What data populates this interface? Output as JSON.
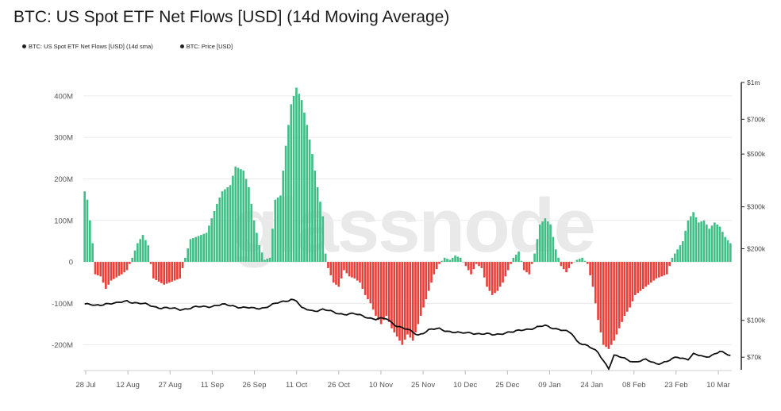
{
  "title": "BTC: US Spot ETF Net Flows [USD] (14d Moving Average)",
  "watermark": "glassnode",
  "legend": [
    {
      "label": "BTC: US Spot ETF Net Flows [USD] (14d sma)",
      "color": "#222222"
    },
    {
      "label": "BTC: Price [USD]",
      "color": "#111111"
    }
  ],
  "colors": {
    "positive": "#3fbf86",
    "negative": "#e8403a",
    "price_line": "#111111",
    "grid": "#ececec"
  },
  "chart_data": {
    "type": "bar",
    "x_tick_labels": [
      "28 Jul",
      "12 Aug",
      "27 Aug",
      "11 Sep",
      "26 Sep",
      "11 Oct",
      "26 Oct",
      "10 Nov",
      "25 Nov",
      "10 Dec",
      "25 Dec",
      "09 Jan",
      "24 Jan",
      "08 Feb",
      "23 Feb",
      "10 Mar"
    ],
    "y_left_ticks": [
      {
        "value": 400,
        "label": "400M"
      },
      {
        "value": 300,
        "label": "300M"
      },
      {
        "value": 200,
        "label": "200M"
      },
      {
        "value": 100,
        "label": "100M"
      },
      {
        "value": 0,
        "label": "0"
      },
      {
        "value": -100,
        "label": "-100M"
      },
      {
        "value": -200,
        "label": "-200M"
      }
    ],
    "y_left_range": [
      -260,
      440
    ],
    "y_right_scale": "log",
    "y_right_ticks": [
      {
        "value": 1000000,
        "label": "$1m"
      },
      {
        "value": 700000,
        "label": "$700k"
      },
      {
        "value": 500000,
        "label": "$500k"
      },
      {
        "value": 300000,
        "label": "$300k"
      },
      {
        "value": 200000,
        "label": "$200k"
      },
      {
        "value": 100000,
        "label": "$100k"
      },
      {
        "value": 70000,
        "label": "$70k"
      }
    ],
    "y_right_range": [
      62000,
      1030000
    ],
    "series": [
      {
        "name": "BTC: US Spot ETF Net Flows [USD] (14d sma)",
        "unit": "M USD",
        "anchors": [
          [
            0,
            170
          ],
          [
            1,
            150
          ],
          [
            2,
            100
          ],
          [
            3,
            45
          ],
          [
            4,
            -30
          ],
          [
            6,
            -35
          ],
          [
            8,
            -65
          ],
          [
            10,
            -45
          ],
          [
            14,
            -30
          ],
          [
            16,
            -20
          ],
          [
            18,
            10
          ],
          [
            20,
            45
          ],
          [
            22,
            65
          ],
          [
            24,
            40
          ],
          [
            25,
            -5
          ],
          [
            26,
            -40
          ],
          [
            30,
            -55
          ],
          [
            34,
            -45
          ],
          [
            36,
            -40
          ],
          [
            38,
            10
          ],
          [
            40,
            55
          ],
          [
            46,
            70
          ],
          [
            50,
            140
          ],
          [
            52,
            170
          ],
          [
            55,
            185
          ],
          [
            57,
            230
          ],
          [
            60,
            220
          ],
          [
            62,
            180
          ],
          [
            64,
            100
          ],
          [
            66,
            40
          ],
          [
            68,
            5
          ],
          [
            70,
            10
          ],
          [
            72,
            150
          ],
          [
            74,
            160
          ],
          [
            76,
            280
          ],
          [
            78,
            380
          ],
          [
            80,
            420
          ],
          [
            82,
            390
          ],
          [
            84,
            330
          ],
          [
            86,
            260
          ],
          [
            88,
            180
          ],
          [
            90,
            110
          ],
          [
            91,
            20
          ],
          [
            92,
            -15
          ],
          [
            94,
            -50
          ],
          [
            96,
            -60
          ],
          [
            98,
            -20
          ],
          [
            100,
            -35
          ],
          [
            102,
            -40
          ],
          [
            104,
            -50
          ],
          [
            106,
            -80
          ],
          [
            108,
            -100
          ],
          [
            110,
            -130
          ],
          [
            112,
            -150
          ],
          [
            114,
            -130
          ],
          [
            116,
            -160
          ],
          [
            118,
            -180
          ],
          [
            120,
            -200
          ],
          [
            122,
            -175
          ],
          [
            124,
            -190
          ],
          [
            126,
            -150
          ],
          [
            128,
            -110
          ],
          [
            130,
            -70
          ],
          [
            132,
            -30
          ],
          [
            134,
            -5
          ],
          [
            136,
            10
          ],
          [
            138,
            5
          ],
          [
            140,
            15
          ],
          [
            142,
            10
          ],
          [
            144,
            -10
          ],
          [
            146,
            -30
          ],
          [
            148,
            -5
          ],
          [
            150,
            -15
          ],
          [
            152,
            -60
          ],
          [
            154,
            -80
          ],
          [
            156,
            -70
          ],
          [
            158,
            -50
          ],
          [
            160,
            -20
          ],
          [
            162,
            10
          ],
          [
            164,
            25
          ],
          [
            166,
            -20
          ],
          [
            168,
            -30
          ],
          [
            170,
            20
          ],
          [
            172,
            90
          ],
          [
            174,
            105
          ],
          [
            176,
            90
          ],
          [
            178,
            30
          ],
          [
            180,
            -10
          ],
          [
            182,
            -25
          ],
          [
            184,
            -5
          ],
          [
            186,
            5
          ],
          [
            188,
            10
          ],
          [
            190,
            -5
          ],
          [
            192,
            -60
          ],
          [
            194,
            -140
          ],
          [
            196,
            -200
          ],
          [
            198,
            -210
          ],
          [
            200,
            -190
          ],
          [
            202,
            -160
          ],
          [
            204,
            -130
          ],
          [
            206,
            -110
          ],
          [
            208,
            -80
          ],
          [
            210,
            -70
          ],
          [
            212,
            -60
          ],
          [
            214,
            -50
          ],
          [
            216,
            -40
          ],
          [
            218,
            -35
          ],
          [
            220,
            -30
          ],
          [
            222,
            10
          ],
          [
            224,
            30
          ],
          [
            226,
            50
          ],
          [
            228,
            100
          ],
          [
            230,
            120
          ],
          [
            232,
            95
          ],
          [
            234,
            100
          ],
          [
            236,
            80
          ],
          [
            238,
            95
          ],
          [
            240,
            85
          ],
          [
            242,
            60
          ],
          [
            244,
            45
          ]
        ]
      },
      {
        "name": "BTC: Price [USD]",
        "unit": "USD",
        "anchors": [
          [
            0,
            117000
          ],
          [
            4,
            115000
          ],
          [
            8,
            118000
          ],
          [
            12,
            117500
          ],
          [
            16,
            121000
          ],
          [
            20,
            118000
          ],
          [
            24,
            116000
          ],
          [
            28,
            113500
          ],
          [
            32,
            112000
          ],
          [
            36,
            111500
          ],
          [
            40,
            112500
          ],
          [
            44,
            114000
          ],
          [
            48,
            115000
          ],
          [
            52,
            116000
          ],
          [
            56,
            115500
          ],
          [
            60,
            113000
          ],
          [
            64,
            112000
          ],
          [
            68,
            113500
          ],
          [
            72,
            117000
          ],
          [
            76,
            121000
          ],
          [
            78,
            123000
          ],
          [
            80,
            121000
          ],
          [
            82,
            112000
          ],
          [
            86,
            110000
          ],
          [
            90,
            111000
          ],
          [
            94,
            108000
          ],
          [
            98,
            106500
          ],
          [
            102,
            106000
          ],
          [
            106,
            104000
          ],
          [
            110,
            101000
          ],
          [
            114,
            101500
          ],
          [
            118,
            95000
          ],
          [
            122,
            91000
          ],
          [
            126,
            87000
          ],
          [
            130,
            91000
          ],
          [
            134,
            92000
          ],
          [
            138,
            90000
          ],
          [
            142,
            88000
          ],
          [
            146,
            89000
          ],
          [
            150,
            87500
          ],
          [
            154,
            87000
          ],
          [
            158,
            88500
          ],
          [
            162,
            89000
          ],
          [
            166,
            92000
          ],
          [
            170,
            92500
          ],
          [
            174,
            95000
          ],
          [
            176,
            94000
          ],
          [
            180,
            91000
          ],
          [
            184,
            88000
          ],
          [
            186,
            82000
          ],
          [
            190,
            78000
          ],
          [
            194,
            73000
          ],
          [
            196,
            68000
          ],
          [
            198,
            63000
          ],
          [
            200,
            71000
          ],
          [
            204,
            69000
          ],
          [
            208,
            67000
          ],
          [
            212,
            68000
          ],
          [
            216,
            66000
          ],
          [
            220,
            67000
          ],
          [
            224,
            70000
          ],
          [
            228,
            69000
          ],
          [
            230,
            72000
          ],
          [
            234,
            70000
          ],
          [
            236,
            71000
          ],
          [
            240,
            74000
          ],
          [
            242,
            72000
          ],
          [
            244,
            71000
          ]
        ]
      }
    ]
  }
}
